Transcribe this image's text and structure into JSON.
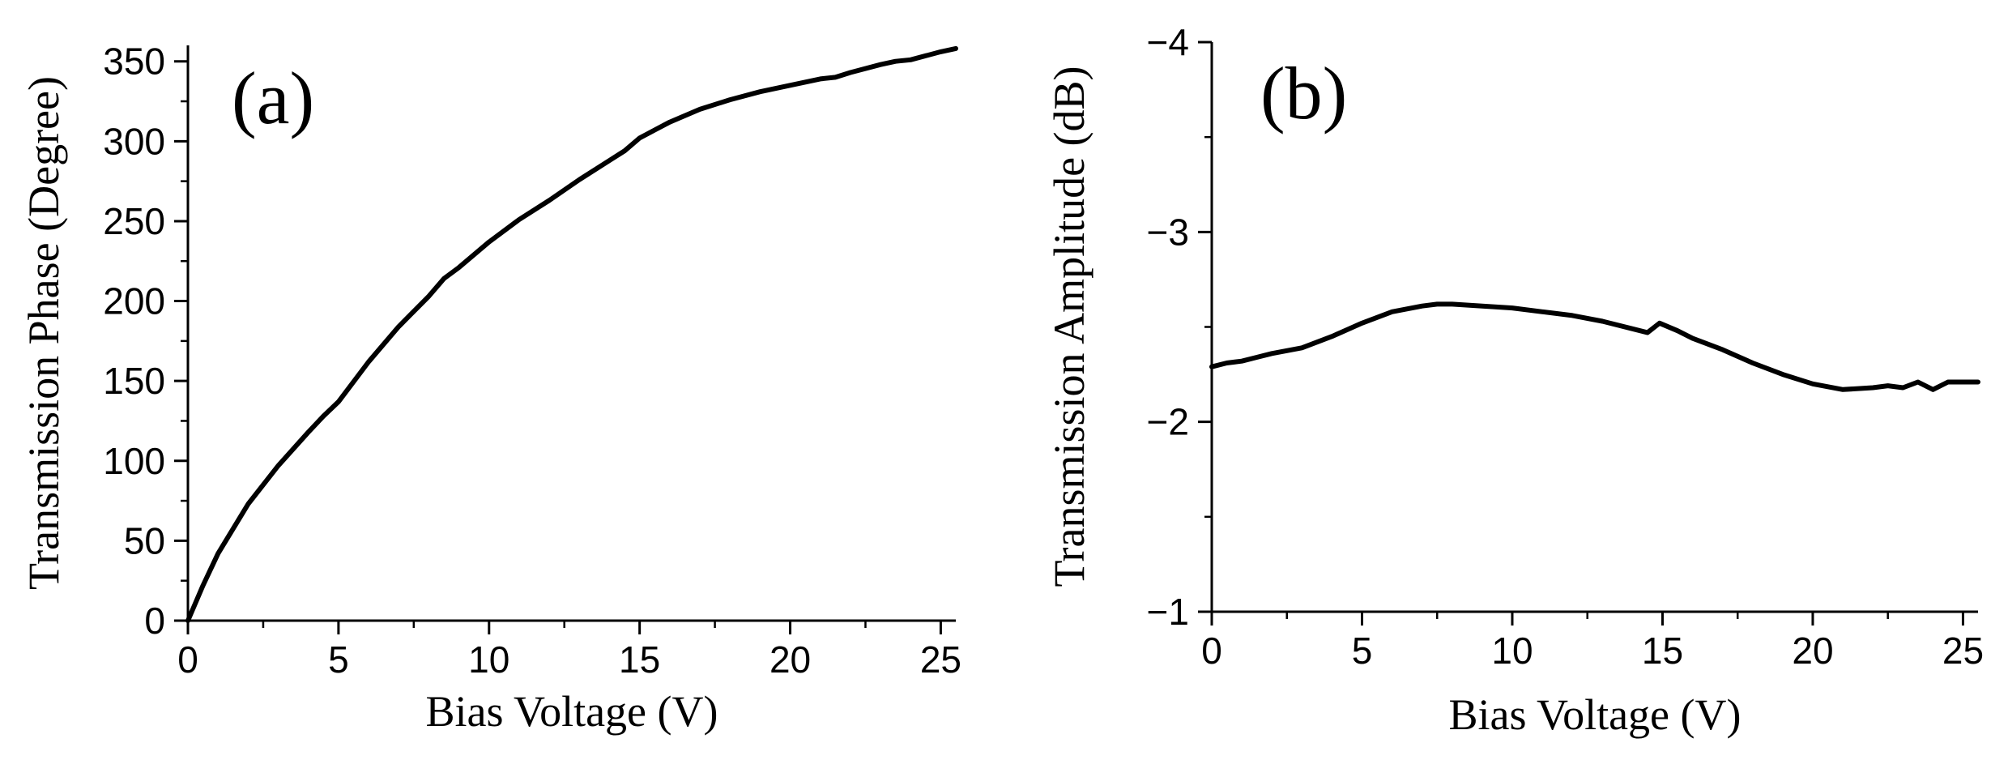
{
  "chart_data": [
    {
      "type": "line",
      "panel_label": "(a)",
      "xlabel": "Bias Voltage (V)",
      "ylabel": "Transmission Phase (Degree)",
      "xlim": [
        0,
        25.5
      ],
      "ylim": [
        0,
        360
      ],
      "xticks": [
        0,
        5,
        10,
        15,
        20,
        25
      ],
      "yticks": [
        0,
        50,
        100,
        150,
        200,
        250,
        300,
        350
      ],
      "series": [
        {
          "name": "phase",
          "x": [
            0,
            0.5,
            1,
            2,
            3,
            4,
            4.5,
            5,
            6,
            7,
            8,
            8.5,
            9,
            10,
            11,
            12,
            13,
            14,
            14.5,
            15,
            15.5,
            16,
            17,
            18,
            19,
            20,
            21,
            21.5,
            22,
            23,
            23.5,
            24,
            25,
            25.5
          ],
          "y": [
            0,
            22,
            42,
            73,
            97,
            118,
            128,
            137,
            162,
            184,
            203,
            214,
            221,
            237,
            251,
            263,
            276,
            288,
            294,
            302,
            307,
            312,
            320,
            326,
            331,
            335,
            339,
            340,
            343,
            348,
            350,
            351,
            356,
            358
          ]
        }
      ]
    },
    {
      "type": "line",
      "panel_label": "(b)",
      "xlabel": "Bias Voltage (V)",
      "ylabel": "Transmission Amplitude (dB)",
      "xlim": [
        0,
        25.5
      ],
      "ylim": [
        -1,
        -4
      ],
      "xticks": [
        0,
        5,
        10,
        15,
        20,
        25
      ],
      "yticks": [
        -1,
        -2,
        -3,
        -4
      ],
      "ytick_labels": [
        "−1",
        "−2",
        "−3",
        "−4"
      ],
      "series": [
        {
          "name": "amplitude",
          "x": [
            0,
            0.5,
            1,
            1.5,
            2,
            3,
            4,
            5,
            6,
            7,
            7.5,
            8,
            9,
            10,
            11,
            12,
            13,
            14,
            14.5,
            14.9,
            15.5,
            16,
            17,
            18,
            19,
            20,
            21,
            22,
            22.5,
            23,
            23.5,
            24,
            24.5,
            25,
            25.5
          ],
          "y": [
            -2.29,
            -2.31,
            -2.32,
            -2.34,
            -2.36,
            -2.39,
            -2.45,
            -2.52,
            -2.58,
            -2.61,
            -2.62,
            -2.62,
            -2.61,
            -2.6,
            -2.58,
            -2.56,
            -2.53,
            -2.49,
            -2.47,
            -2.52,
            -2.48,
            -2.44,
            -2.38,
            -2.31,
            -2.25,
            -2.2,
            -2.17,
            -2.18,
            -2.19,
            -2.18,
            -2.21,
            -2.17,
            -2.21,
            -2.21,
            -2.21
          ]
        }
      ]
    }
  ]
}
